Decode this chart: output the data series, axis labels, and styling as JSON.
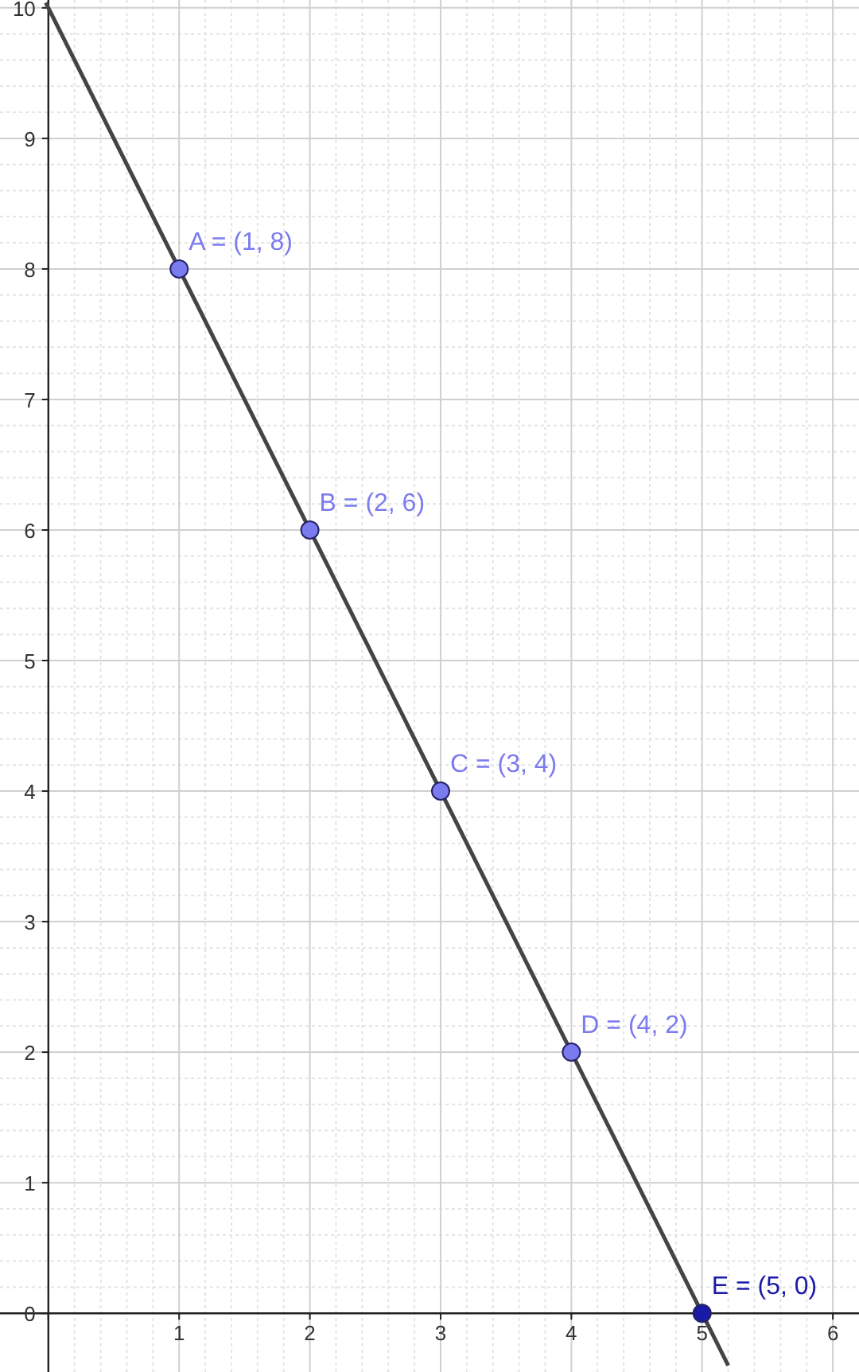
{
  "chart_data": {
    "type": "line",
    "xlim": [
      -0.37,
      6.2
    ],
    "ylim": [
      -0.45,
      10.06
    ],
    "xticks": [
      {
        "value": 0,
        "label": null
      },
      1,
      2,
      3,
      4,
      5,
      6
    ],
    "yticks": [
      0,
      1,
      2,
      3,
      4,
      5,
      6,
      7,
      8,
      9,
      10
    ],
    "grid": true,
    "series": [
      {
        "color": "#444444",
        "x": [
          -0.02,
          5.2
        ],
        "values": [
          10.04,
          -0.4
        ],
        "marker": "none"
      },
      {
        "type": "scatter",
        "marker": "circle",
        "x": [
          1,
          2,
          3,
          4,
          5
        ],
        "values": [
          8,
          6,
          4,
          2,
          0
        ],
        "colors": [
          "#7b7bf0",
          "#7b7bf0",
          "#7b7bf0",
          "#7b7bf0",
          "#1a1aa8"
        ],
        "value_labels": [
          "A = (1, 8)",
          "B = (2, 6)",
          "C = (3, 4)",
          "D = (4, 2)",
          "E = (5, 0)"
        ]
      }
    ]
  }
}
